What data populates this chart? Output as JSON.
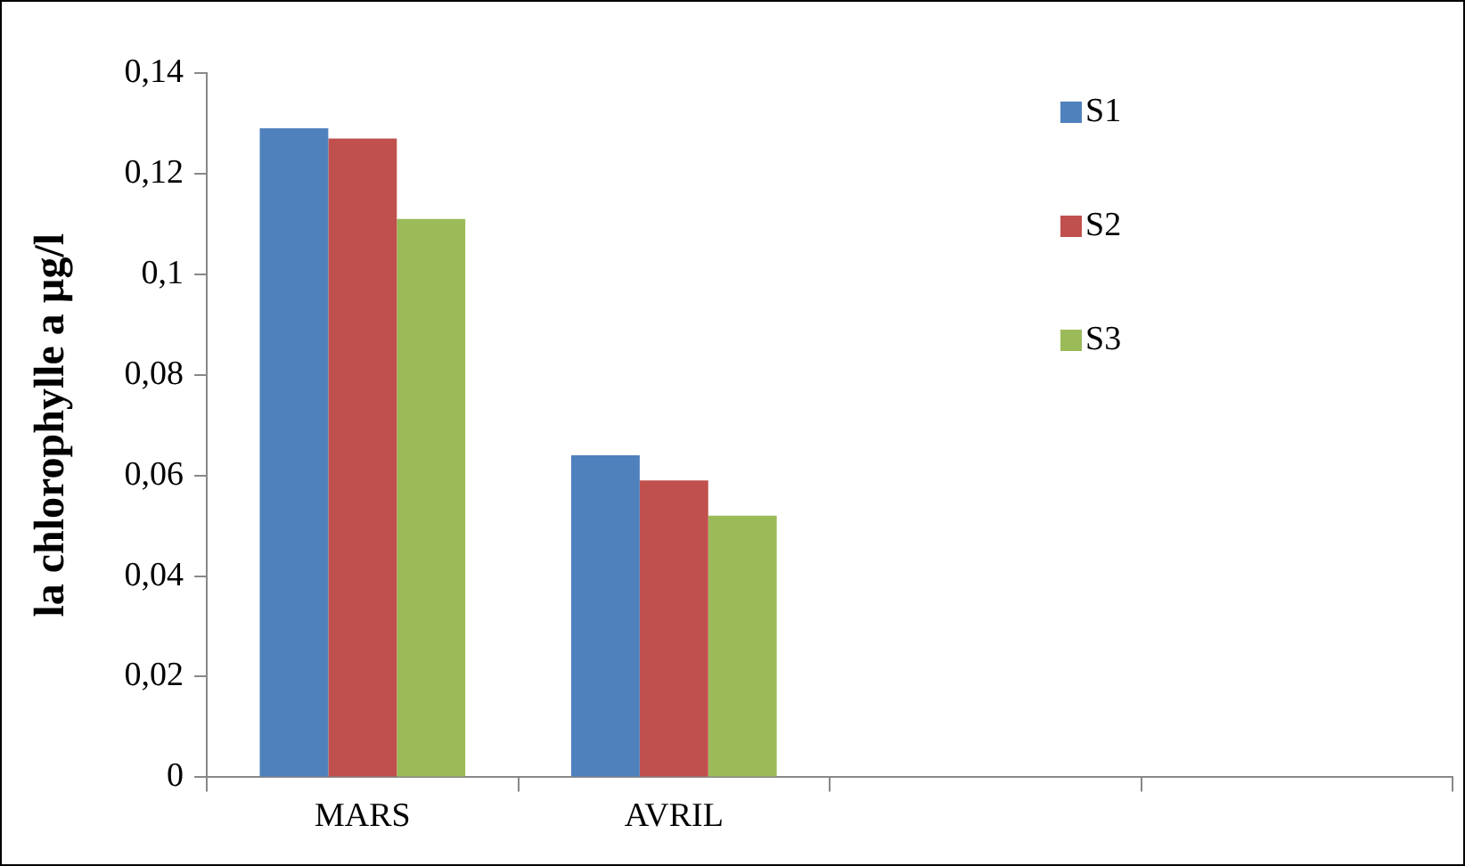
{
  "chart_data": {
    "type": "bar",
    "ylabel": "la chlorophylle a µg/l",
    "categories": [
      "MARS",
      "AVRIL",
      null,
      null
    ],
    "series": [
      {
        "name": "S1",
        "color": "#4f81bd",
        "values": [
          0.129,
          0.064,
          null,
          null
        ]
      },
      {
        "name": "S2",
        "color": "#c0504d",
        "values": [
          0.127,
          0.059,
          null,
          null
        ]
      },
      {
        "name": "S3",
        "color": "#9bbb59",
        "values": [
          0.111,
          0.052,
          null,
          null
        ]
      }
    ],
    "ylim": [
      0,
      0.14
    ],
    "yticks": [
      0,
      {
        "value": 0.02,
        "label": "0,02"
      },
      {
        "value": 0.04,
        "label": "0,04"
      },
      {
        "value": 0.06,
        "label": "0,06"
      },
      {
        "value": 0.08,
        "label": "0,08"
      },
      {
        "value": 0.1,
        "label": "0,1"
      },
      {
        "value": 0.12,
        "label": "0,12"
      },
      {
        "value": 0.14,
        "label": "0,14"
      }
    ],
    "grid": false,
    "legend": "top right"
  }
}
